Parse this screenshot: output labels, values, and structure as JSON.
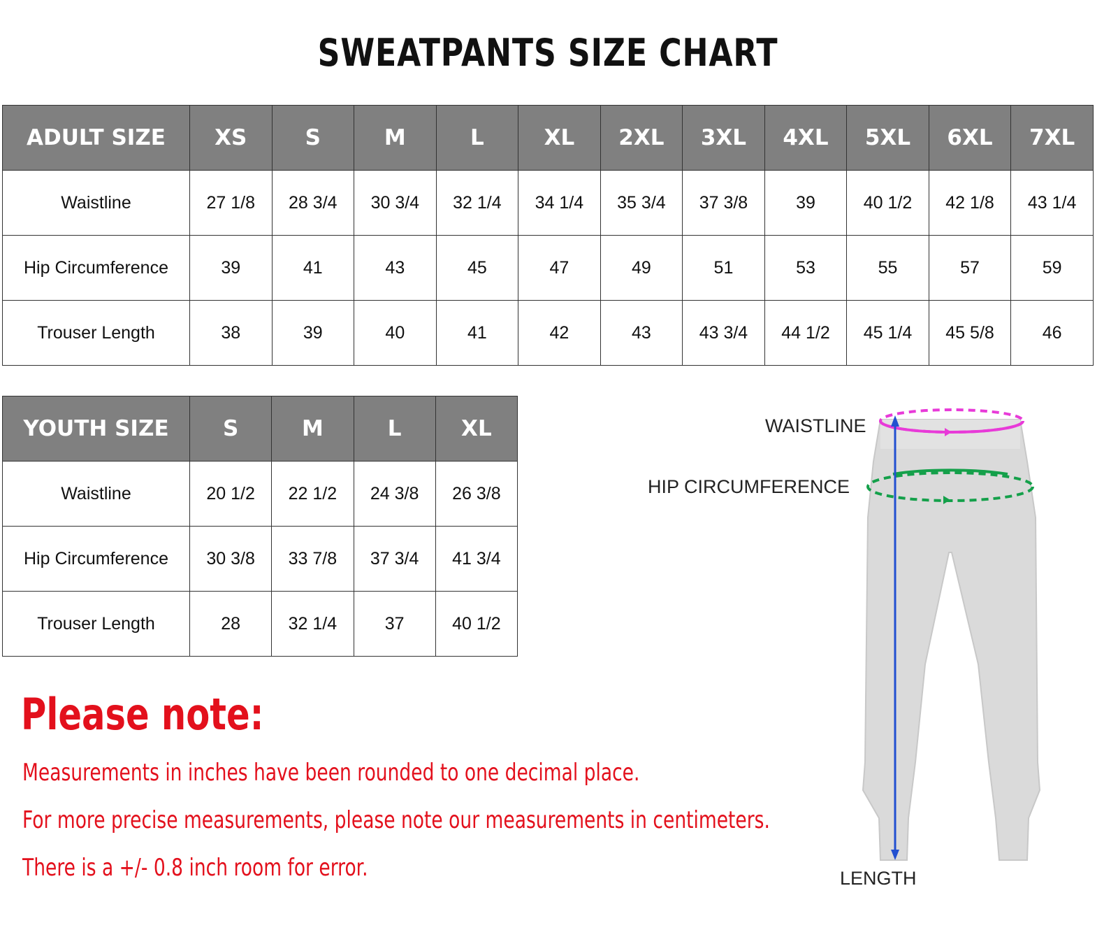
{
  "title": "SWEATPANTS SIZE CHART",
  "adult": {
    "header": [
      "ADULT SIZE",
      "XS",
      "S",
      "M",
      "L",
      "XL",
      "2XL",
      "3XL",
      "4XL",
      "5XL",
      "6XL",
      "7XL"
    ],
    "rows": [
      [
        "Waistline",
        "27 1/8",
        "28 3/4",
        "30 3/4",
        "32 1/4",
        "34 1/4",
        "35 3/4",
        "37 3/8",
        "39",
        "40 1/2",
        "42 1/8",
        "43 1/4"
      ],
      [
        "Hip Circumference",
        "39",
        "41",
        "43",
        "45",
        "47",
        "49",
        "51",
        "53",
        "55",
        "57",
        "59"
      ],
      [
        "Trouser Length",
        "38",
        "39",
        "40",
        "41",
        "42",
        "43",
        "43 3/4",
        "44 1/2",
        "45 1/4",
        "45 5/8",
        "46"
      ]
    ]
  },
  "youth": {
    "header": [
      "YOUTH SIZE",
      "S",
      "M",
      "L",
      "XL"
    ],
    "rows": [
      [
        "Waistline",
        "20 1/2",
        "22 1/2",
        "24 3/8",
        "26 3/8"
      ],
      [
        "Hip Circumference",
        "30 3/8",
        "33 7/8",
        "37 3/4",
        "41 3/4"
      ],
      [
        "Trouser Length",
        "28",
        "32 1/4",
        "37",
        "40 1/2"
      ]
    ]
  },
  "note": {
    "heading": "Please note:",
    "lines": [
      "Measurements in inches have been rounded to one decimal place.",
      "For more precise measurements, please note our measurements in centimeters.",
      "There is a +/- 0.8 inch room for error."
    ]
  },
  "diagram": {
    "waistline_label": "WAISTLINE",
    "hip_label": "HIP CIRCUMFERENCE",
    "length_label": "LENGTH",
    "colors": {
      "waist": "#e83ad8",
      "hip": "#14a04a",
      "length": "#2250d0",
      "note": "#e3101c",
      "header": "#808080"
    }
  }
}
